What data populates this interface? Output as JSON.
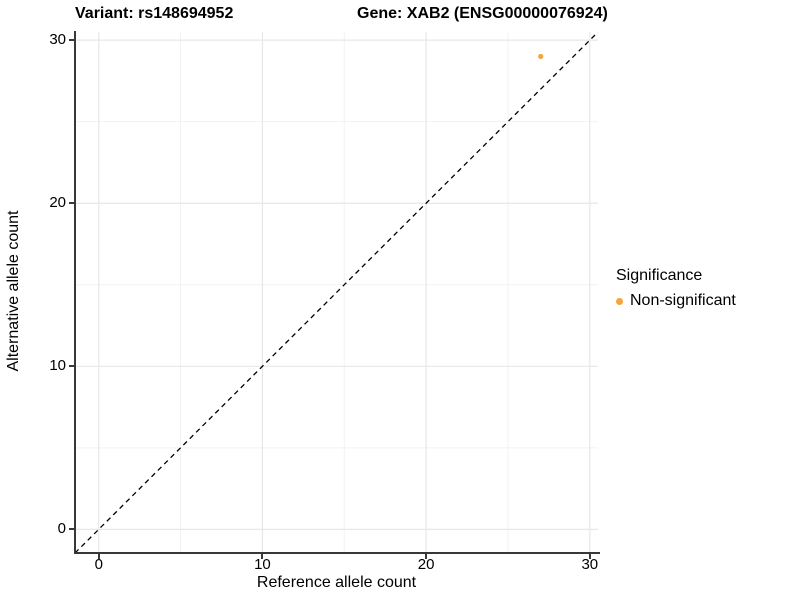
{
  "title": {
    "variant": "Variant: rs148694952",
    "gene": "Gene: XAB2 (ENSG00000076924)"
  },
  "axes": {
    "x_label": "Reference allele count",
    "y_label": "Alternative allele count"
  },
  "legend": {
    "title": "Significance",
    "items": [
      {
        "label": "Non-significant",
        "color": "#F8A33C",
        "marker": "circle-icon"
      }
    ]
  },
  "colors": {
    "background": "#FFFFFF",
    "point_orange": "#F8A33C",
    "axis_line": "#383838",
    "grid_major": "#E7E7E7",
    "grid_minor": "#F2F2F2",
    "reference_line": "#000000",
    "text": "#000000"
  },
  "chart_data": {
    "type": "scatter",
    "title": "Variant: rs148694952   Gene: XAB2 (ENSG00000076924)",
    "xlabel": "Reference allele count",
    "ylabel": "Alternative allele count",
    "xlim": [
      -1.45,
      30.5
    ],
    "ylim": [
      -1.45,
      30.5
    ],
    "x_ticks": [
      0,
      10,
      20,
      30
    ],
    "y_ticks": [
      0,
      10,
      20,
      30
    ],
    "x_minor_ticks": [
      5,
      15,
      25
    ],
    "y_minor_ticks": [
      5,
      15,
      25
    ],
    "grid": "major+minor",
    "legend_position": "right",
    "series": [
      {
        "name": "Non-significant",
        "color": "#F8A33C",
        "points": [
          {
            "x": 27,
            "y": 29
          }
        ]
      }
    ],
    "reference_line": {
      "kind": "identity y=x",
      "style": "dashed",
      "color": "#000000"
    }
  }
}
